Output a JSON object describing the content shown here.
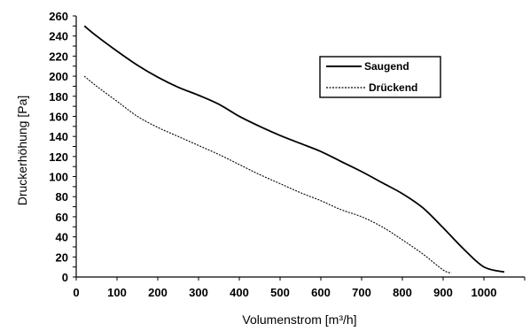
{
  "chart_data": {
    "type": "line",
    "xlabel": "Volumenstrom    [m³/h]",
    "ylabel": "Druckerhöhung    [Pa]",
    "xlim": [
      0,
      1100
    ],
    "ylim": [
      0,
      260
    ],
    "xticks": [
      0,
      100,
      200,
      300,
      400,
      500,
      600,
      700,
      800,
      900,
      1000
    ],
    "yticks": [
      0,
      10,
      20,
      30,
      40,
      50,
      60,
      70,
      80,
      90,
      100,
      110,
      120,
      130,
      140,
      150,
      160,
      170,
      180,
      190,
      200,
      210,
      220,
      230,
      240,
      250,
      260
    ],
    "ytick_labels_shown": [
      0,
      20,
      40,
      60,
      80,
      100,
      120,
      140,
      160,
      180,
      200,
      220,
      240,
      260
    ],
    "grid": false,
    "legend_position": "top-right",
    "series": [
      {
        "name": "Saugend",
        "style": "solid",
        "color": "#000000",
        "x": [
          20,
          50,
          100,
          150,
          200,
          250,
          300,
          350,
          400,
          450,
          500,
          550,
          600,
          650,
          700,
          750,
          800,
          850,
          900,
          950,
          1000,
          1050
        ],
        "y": [
          250,
          240,
          225,
          211,
          199,
          189,
          181,
          172,
          160,
          150,
          141,
          133,
          125,
          115,
          105,
          94,
          83,
          69,
          49,
          28,
          10,
          5
        ]
      },
      {
        "name": "Drückend",
        "style": "dashed",
        "color": "#000000",
        "x": [
          20,
          50,
          100,
          150,
          200,
          250,
          300,
          350,
          400,
          450,
          500,
          550,
          600,
          650,
          700,
          750,
          800,
          850,
          900,
          920
        ],
        "y": [
          200,
          190,
          175,
          160,
          149,
          140,
          131,
          122,
          112,
          102,
          93,
          84,
          76,
          67,
          60,
          50,
          37,
          23,
          7,
          4
        ]
      }
    ]
  }
}
